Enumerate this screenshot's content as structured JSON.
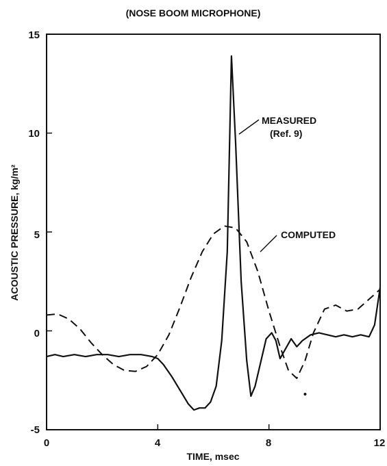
{
  "chart_data": {
    "type": "line",
    "title": "(NOSE BOOM MICROPHONE)",
    "xlabel": "TIME, msec",
    "ylabel": "ACOUSTIC PRESSURE, kg/m²",
    "xlim": [
      0,
      12
    ],
    "ylim": [
      -5,
      15
    ],
    "xticks": [
      "0",
      "4",
      "8",
      "12"
    ],
    "yticks": [
      "-5",
      "0",
      "5",
      "10",
      "15"
    ],
    "grid": false,
    "legend": "none",
    "annotations": [
      {
        "text": "MEASURED",
        "text2": "(Ref. 9)"
      },
      {
        "text": "COMPUTED"
      }
    ],
    "series": [
      {
        "label": "MEASURED",
        "style": "solid",
        "x": [
          0,
          0.3,
          0.6,
          1.0,
          1.4,
          1.8,
          2.2,
          2.6,
          3.0,
          3.4,
          3.8,
          4.0,
          4.2,
          4.5,
          4.8,
          5.1,
          5.3,
          5.5,
          5.7,
          5.9,
          6.1,
          6.3,
          6.5,
          6.65,
          6.8,
          7.0,
          7.2,
          7.35,
          7.5,
          7.7,
          7.9,
          8.1,
          8.25,
          8.4,
          8.6,
          8.8,
          9.0,
          9.2,
          9.5,
          9.8,
          10.1,
          10.4,
          10.7,
          11.0,
          11.3,
          11.6,
          11.8,
          12.0
        ],
        "y": [
          -1.3,
          -1.2,
          -1.3,
          -1.2,
          -1.3,
          -1.2,
          -1.2,
          -1.3,
          -1.2,
          -1.2,
          -1.3,
          -1.4,
          -1.7,
          -2.3,
          -3.0,
          -3.7,
          -4.0,
          -3.9,
          -3.9,
          -3.6,
          -2.8,
          -0.5,
          4.0,
          13.9,
          9.5,
          2.5,
          -1.5,
          -3.3,
          -2.8,
          -1.6,
          -0.4,
          -0.1,
          -0.5,
          -1.4,
          -0.9,
          -0.4,
          -0.8,
          -0.5,
          -0.2,
          -0.1,
          -0.2,
          -0.3,
          -0.2,
          -0.3,
          -0.2,
          -0.3,
          0.3,
          2.2
        ]
      },
      {
        "label": "COMPUTED",
        "style": "dashed",
        "x": [
          0,
          0.4,
          0.8,
          1.2,
          1.6,
          2.0,
          2.4,
          2.8,
          3.2,
          3.6,
          4.0,
          4.4,
          4.8,
          5.2,
          5.6,
          6.0,
          6.4,
          6.8,
          7.2,
          7.6,
          8.0,
          8.4,
          8.7,
          9.0,
          9.3,
          9.6,
          10.0,
          10.4,
          10.8,
          11.2,
          11.6,
          12.0
        ],
        "y": [
          0.8,
          0.85,
          0.6,
          0.1,
          -0.6,
          -1.2,
          -1.7,
          -2.0,
          -2.05,
          -1.8,
          -1.2,
          -0.2,
          1.2,
          2.7,
          4.0,
          4.9,
          5.3,
          5.2,
          4.5,
          3.0,
          1.0,
          -0.8,
          -2.0,
          -2.4,
          -1.5,
          -0.1,
          1.1,
          1.3,
          1.0,
          1.1,
          1.6,
          2.1
        ]
      }
    ],
    "stray_point": {
      "x": 9.3,
      "y": -3.2
    }
  }
}
